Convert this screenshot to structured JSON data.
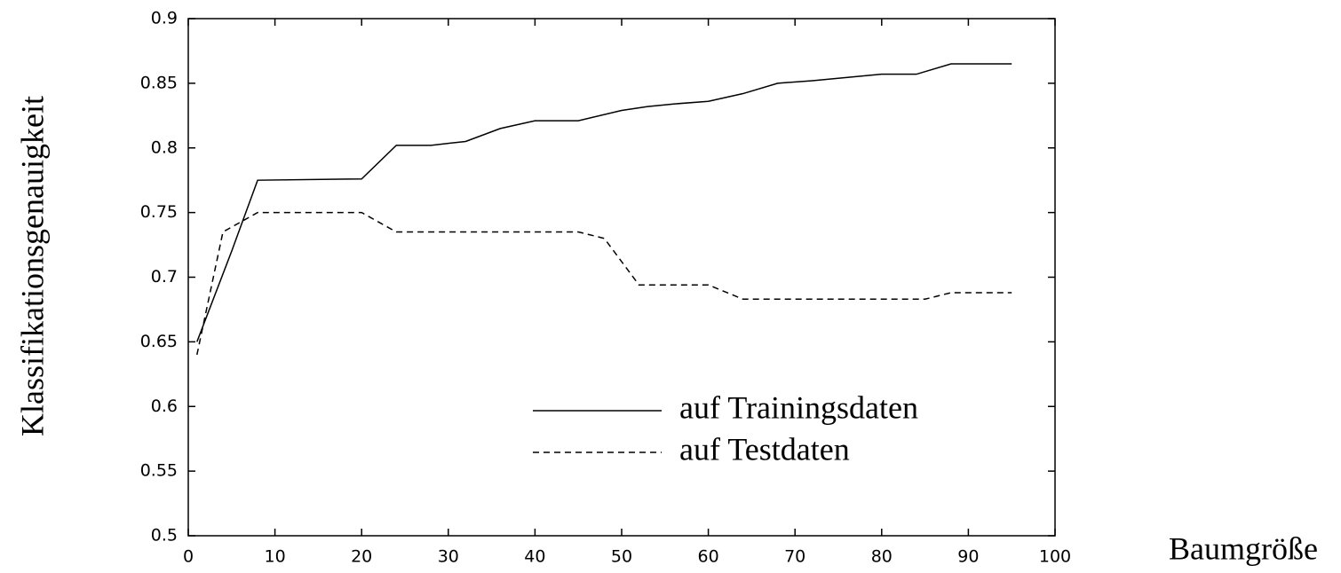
{
  "chart_data": {
    "type": "line",
    "x_label": "Baumgröße",
    "y_label": "Klassifikationsgenauigkeit",
    "xlim": [
      0,
      100
    ],
    "xticks": [
      0,
      10,
      20,
      30,
      40,
      50,
      60,
      70,
      80,
      90,
      100
    ],
    "ylim": [
      0.5,
      0.9
    ],
    "yticks": [
      0.5,
      0.55,
      0.6,
      0.65,
      0.7,
      0.75,
      0.8,
      0.85,
      0.9
    ],
    "legend": "lower right",
    "series": [
      {
        "name": "auf Trainingsdaten",
        "color": "#000000",
        "dash": "solid",
        "x": [
          1,
          5,
          8,
          20,
          24,
          28,
          32,
          36,
          40,
          45,
          50,
          53,
          56,
          60,
          64,
          68,
          72,
          80,
          84,
          88,
          95
        ],
        "values": [
          0.65,
          0.72,
          0.775,
          0.776,
          0.802,
          0.802,
          0.805,
          0.815,
          0.821,
          0.821,
          0.829,
          0.832,
          0.834,
          0.836,
          0.842,
          0.85,
          0.852,
          0.857,
          0.857,
          0.865,
          0.865
        ]
      },
      {
        "name": "auf Testdaten",
        "color": "#000000",
        "dash": "dashed",
        "x": [
          1,
          4,
          8,
          20,
          24,
          45,
          48,
          52,
          60,
          64,
          85,
          88,
          95
        ],
        "values": [
          0.64,
          0.735,
          0.75,
          0.75,
          0.735,
          0.735,
          0.73,
          0.694,
          0.694,
          0.683,
          0.683,
          0.688,
          0.688
        ]
      }
    ]
  }
}
